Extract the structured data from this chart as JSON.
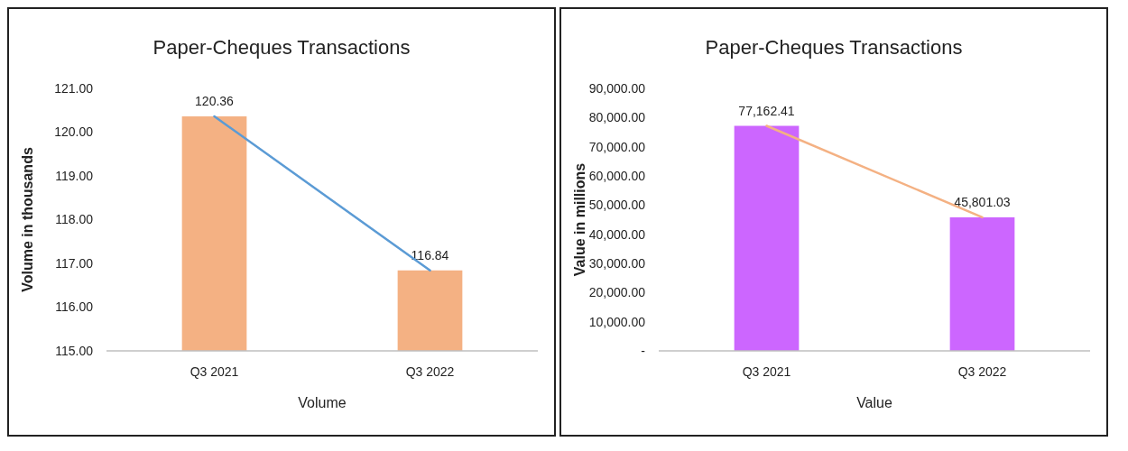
{
  "chart_data": [
    {
      "type": "bar",
      "title": "Paper-Cheques Transactions",
      "xlabel": "Volume",
      "ylabel": "Volume in thousands",
      "categories": [
        "Q3 2021",
        "Q3 2022"
      ],
      "series": [
        {
          "color": "#f4b183",
          "values": [
            120.36,
            116.84
          ],
          "value_labels": [
            "120.36",
            "116.84"
          ]
        },
        {
          "type": "line",
          "color": "#5b9bd5",
          "values": [
            120.36,
            116.84
          ]
        }
      ],
      "ylim": [
        115,
        121
      ],
      "yticks": [
        {
          "value": 115,
          "label": "115.00"
        },
        {
          "value": 116,
          "label": "116.00"
        },
        {
          "value": 117,
          "label": "117.00"
        },
        {
          "value": 118,
          "label": "118.00"
        },
        {
          "value": 119,
          "label": "119.00"
        },
        {
          "value": 120,
          "label": "120.00"
        },
        {
          "value": 121,
          "label": "121.00"
        }
      ],
      "grid": false
    },
    {
      "type": "bar",
      "title": "Paper-Cheques Transactions",
      "xlabel": "Value",
      "ylabel": "Value in millions",
      "categories": [
        "Q3 2021",
        "Q3 2022"
      ],
      "series": [
        {
          "color": "#cc66ff",
          "values": [
            77162.41,
            45801.03
          ],
          "value_labels": [
            "77,162.41",
            "45,801.03"
          ]
        },
        {
          "type": "line",
          "color": "#f4b183",
          "values": [
            77162.41,
            45801.03
          ]
        }
      ],
      "ylim": [
        0,
        90000
      ],
      "yticks": [
        {
          "value": 0,
          "label": "-"
        },
        {
          "value": 10000,
          "label": "10,000.00"
        },
        {
          "value": 20000,
          "label": "20,000.00"
        },
        {
          "value": 30000,
          "label": "30,000.00"
        },
        {
          "value": 40000,
          "label": "40,000.00"
        },
        {
          "value": 50000,
          "label": "50,000.00"
        },
        {
          "value": 60000,
          "label": "60,000.00"
        },
        {
          "value": 70000,
          "label": "70,000.00"
        },
        {
          "value": 80000,
          "label": "80,000.00"
        },
        {
          "value": 90000,
          "label": "90,000.00"
        }
      ],
      "grid": false
    }
  ]
}
